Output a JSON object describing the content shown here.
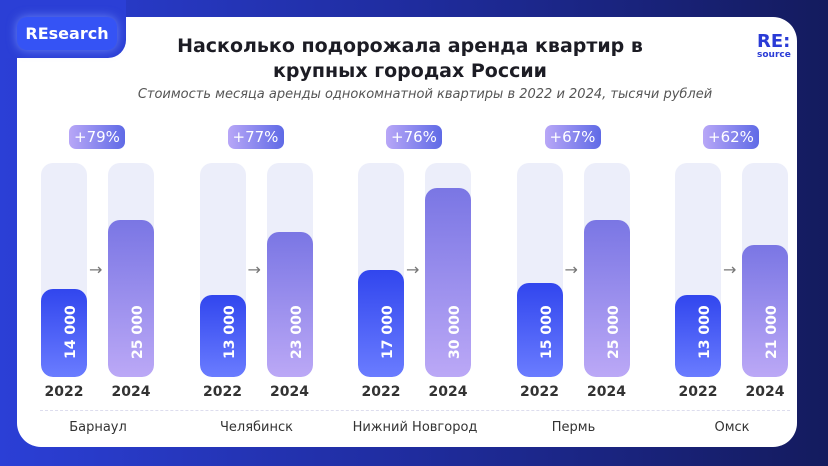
{
  "badge": "REsearch",
  "logo": {
    "line1": "RE:",
    "line2": "source"
  },
  "chart_data": {
    "type": "bar",
    "title": "Насколько подорожала аренда квартир в крупных городах России",
    "subtitle": "Стоимость месяца аренды однокомнатной квартиры в 2022 и 2024, тысячи рублей",
    "categories": [
      "Барнаул",
      "Челябинск",
      "Нижний Новгород",
      "Пермь",
      "Омск"
    ],
    "years": [
      "2022",
      "2024"
    ],
    "series": [
      {
        "name": "2022",
        "values": [
          14000,
          13000,
          17000,
          15000,
          13000
        ],
        "labels": [
          "14 000",
          "13 000",
          "17 000",
          "15 000",
          "13 000"
        ],
        "color": "#3146ee"
      },
      {
        "name": "2024",
        "values": [
          25000,
          23000,
          30000,
          25000,
          21000
        ],
        "labels": [
          "25 000",
          "23 000",
          "30 000",
          "25 000",
          "21 000"
        ],
        "color": "#8f86ea"
      }
    ],
    "growth": [
      "+79%",
      "+77%",
      "+76%",
      "+67%",
      "+62%"
    ],
    "ylim": [
      0,
      34000
    ]
  }
}
